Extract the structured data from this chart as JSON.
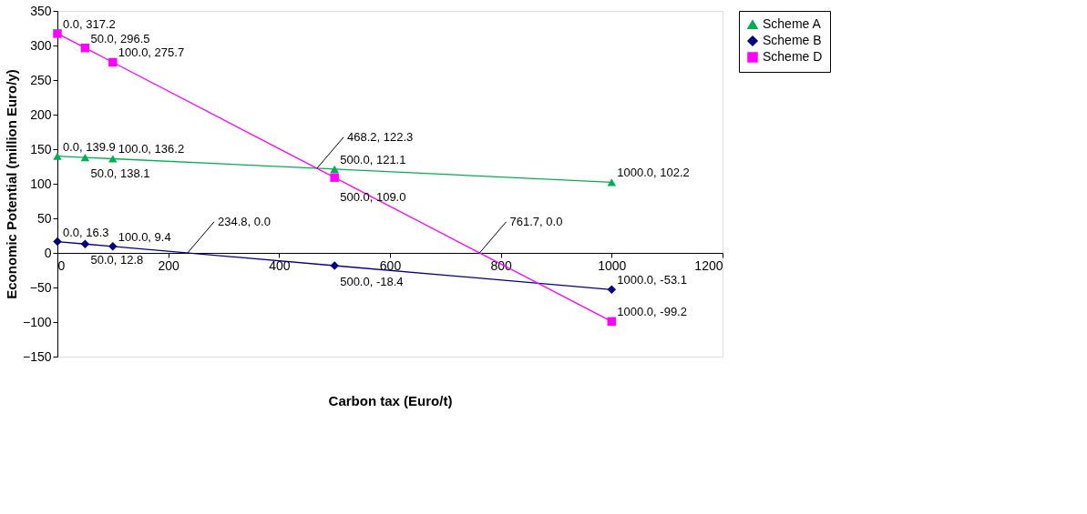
{
  "chart_data": {
    "type": "line",
    "xlabel": "Carbon tax (Euro/t)",
    "ylabel": "Economic Potential  (million Euro/y)",
    "x": [
      0,
      50,
      100,
      500,
      1000
    ],
    "series": [
      {
        "name": "Scheme A",
        "color": "#00b050",
        "marker": "triangle",
        "values": [
          139.9,
          138.1,
          136.2,
          121.1,
          102.2
        ],
        "value_labels": [
          "0.0, 139.9",
          "50.0, 138.1",
          "100.0, 136.2",
          "500.0, 121.1",
          "1000.0, 102.2"
        ]
      },
      {
        "name": "Scheme B",
        "color": "#000080",
        "marker": "diamond",
        "values": [
          16.3,
          12.8,
          9.4,
          -18.4,
          -53.1
        ],
        "value_labels": [
          "0.0, 16.3",
          "50.0, 12.8",
          "100.0, 9.4",
          "500.0, -18.4",
          "1000.0, -53.1"
        ]
      },
      {
        "name": "Scheme D",
        "color": "#ff00ff",
        "marker": "square",
        "values": [
          317.2,
          296.5,
          275.7,
          109.0,
          -99.2
        ],
        "value_labels": [
          "0.0, 317.2",
          "50.0, 296.5",
          "100.0, 275.7",
          "500.0, 109.0",
          "1000.0, -99.2"
        ]
      }
    ],
    "annotations": [
      {
        "text": "468.2, 122.3",
        "x": 468.2,
        "y": 122.3
      },
      {
        "text": "234.8, 0.0",
        "x": 234.8,
        "y": 0
      },
      {
        "text": "761.7, 0.0",
        "x": 761.7,
        "y": 0
      }
    ],
    "xlim": [
      0,
      1200
    ],
    "xticks": [
      0,
      200,
      400,
      600,
      800,
      1000,
      1200
    ],
    "ylim": [
      -150,
      350
    ],
    "yticks": [
      -150,
      -100,
      -50,
      0,
      50,
      100,
      150,
      200,
      250,
      300,
      350
    ],
    "grid": false,
    "legend": "right",
    "line_style": "solid"
  }
}
